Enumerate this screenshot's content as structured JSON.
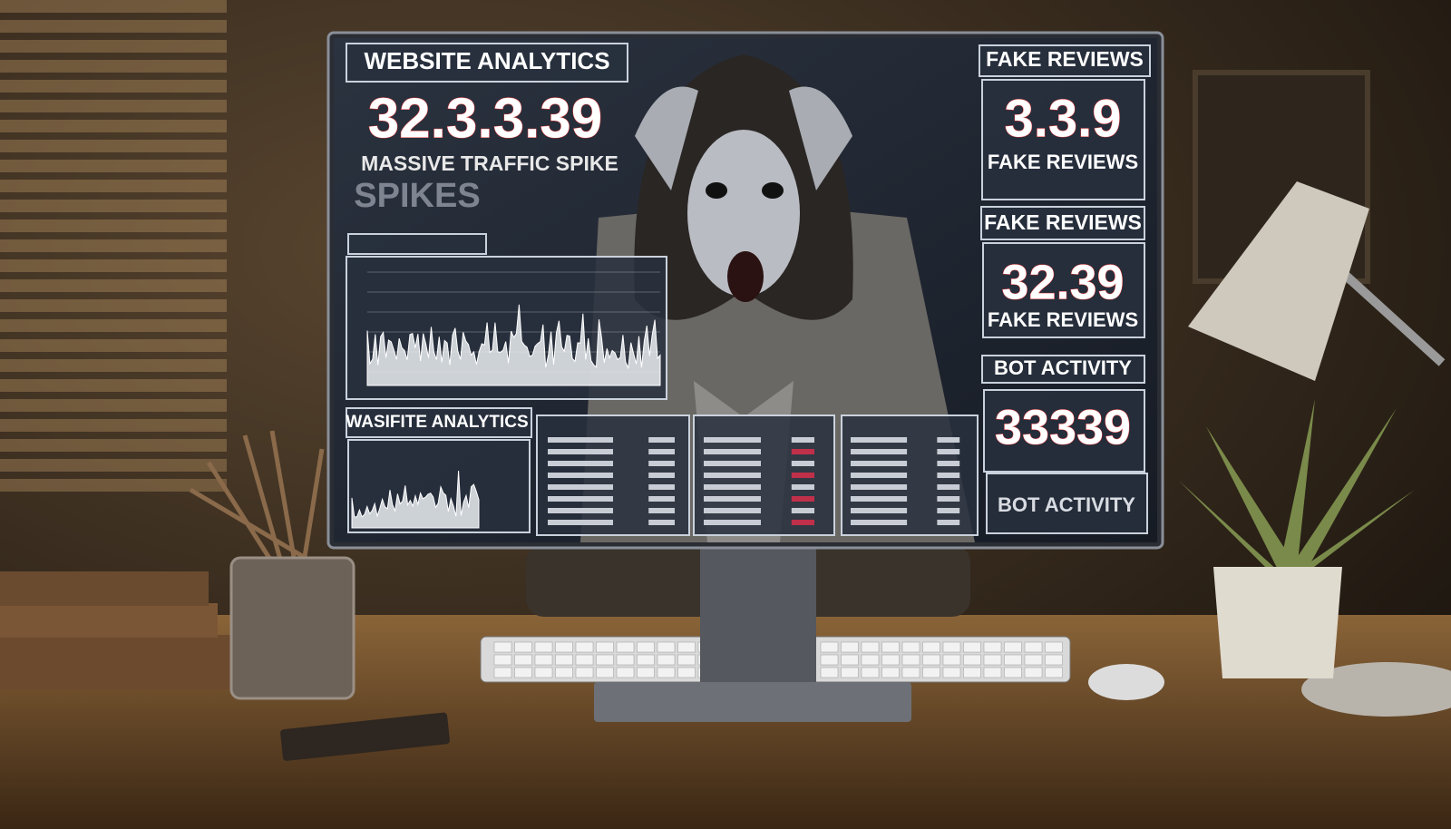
{
  "screen": {
    "left": {
      "title": "WEBSITE ANALYTICS",
      "big_number": "32.3.3.39",
      "caption": "MASSIVE TRAFFIC SPIKE",
      "subcaption": "SPIKES",
      "bottom_title": "WASIFITE ANALYTICS"
    },
    "right": [
      {
        "title": "FAKE REVIEWS",
        "number": "3.3.9",
        "caption": "FAKE REVIEWS"
      },
      {
        "title": "FAKE REVIEWS",
        "number": "32.39",
        "caption": "FAKE REVIEWS"
      },
      {
        "title": "BOT ACTIVITY",
        "number": "33339",
        "caption": "BOT ACTIVITY"
      }
    ]
  }
}
